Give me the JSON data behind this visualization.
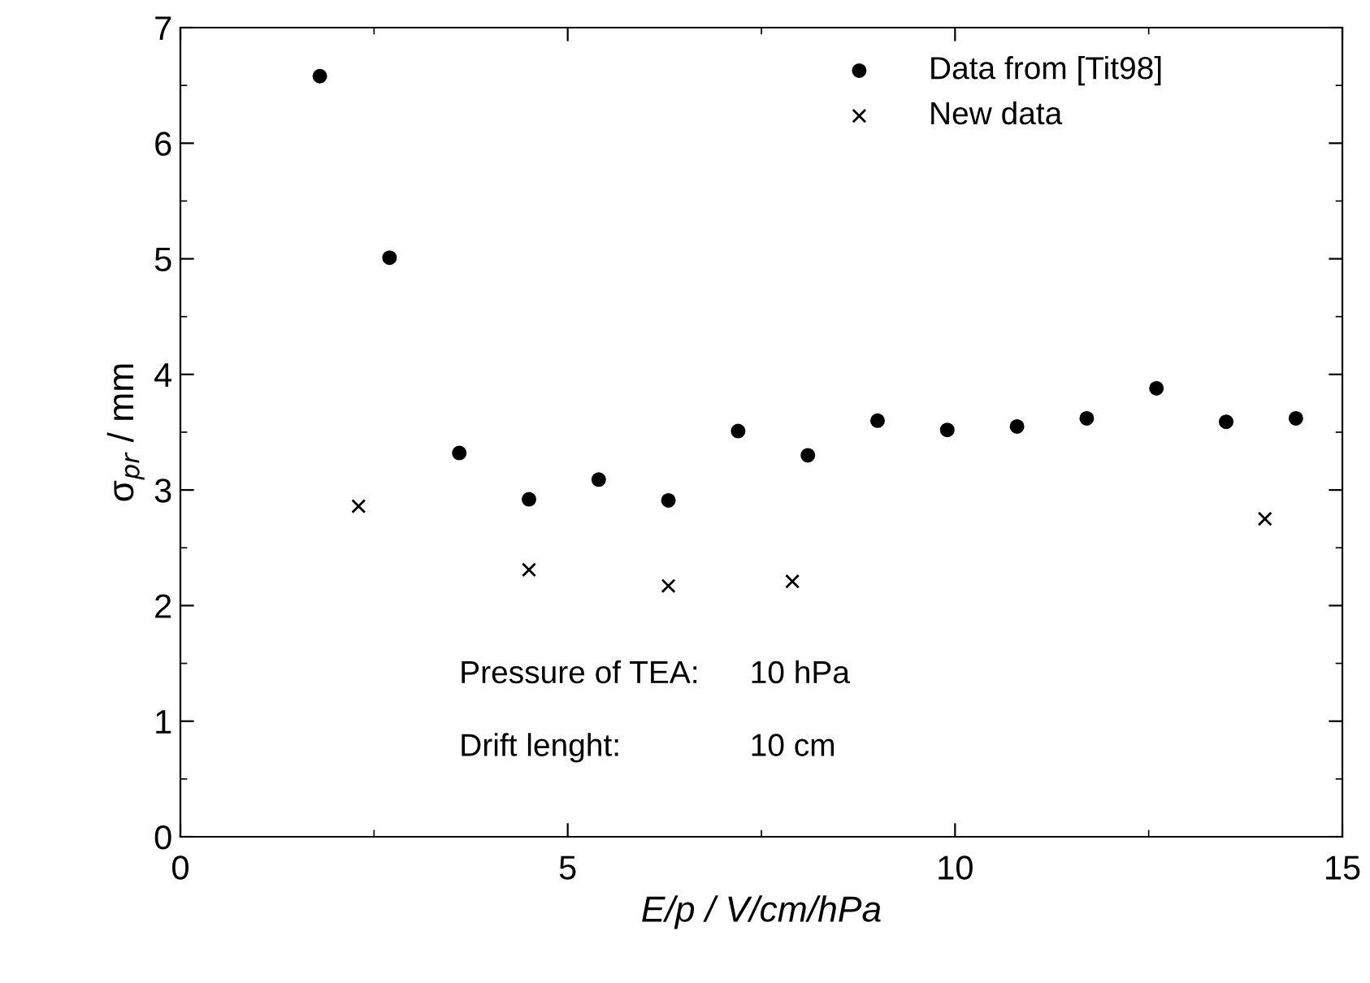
{
  "chart_data": {
    "type": "scatter",
    "xlabel": "E/p / V/cm/hPa",
    "ylabel": "σ$_{pr}$ / mm",
    "xlim": [
      0,
      15
    ],
    "xticks": [
      0,
      5,
      10,
      15
    ],
    "ylim": [
      0,
      7
    ],
    "yticks": [
      0,
      1,
      2,
      3,
      4,
      5,
      6,
      7
    ],
    "grid": false,
    "legend": "top right",
    "series": [
      {
        "name": "Data from [Tit98]",
        "color": "#000000",
        "marker": "circle",
        "x": [
          1.8,
          2.7,
          3.6,
          4.5,
          5.4,
          6.3,
          7.2,
          8.1,
          9.0,
          9.9,
          10.8,
          11.7,
          12.6,
          13.5,
          14.4
        ],
        "values": [
          6.58,
          5.01,
          3.32,
          2.92,
          3.09,
          2.91,
          3.51,
          3.3,
          3.6,
          3.52,
          3.55,
          3.62,
          3.88,
          3.59,
          3.62
        ]
      },
      {
        "name": "New data",
        "color": "#000000",
        "marker": "cross",
        "x": [
          2.3,
          4.5,
          6.3,
          7.9,
          14.0
        ],
        "values": [
          2.86,
          2.31,
          2.17,
          2.21,
          2.75
        ]
      }
    ],
    "annotations": [
      "Pressure of TEA:",
      "10 hPa",
      "Drift lenght:",
      "10 cm"
    ]
  }
}
